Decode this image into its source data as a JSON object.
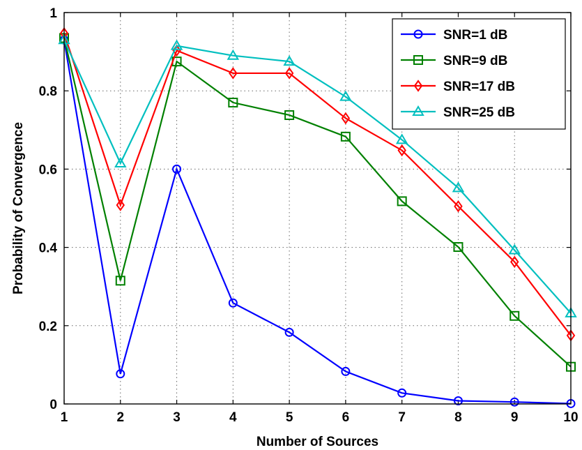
{
  "chart_data": {
    "type": "line",
    "title": "",
    "xlabel": "Number of Sources",
    "ylabel": "Probability of Convergence",
    "x": [
      1,
      2,
      3,
      4,
      5,
      6,
      7,
      8,
      9,
      10
    ],
    "xlim": [
      1,
      10
    ],
    "ylim": [
      0,
      1
    ],
    "xticks": [
      1,
      2,
      3,
      4,
      5,
      6,
      7,
      8,
      9,
      10
    ],
    "yticks": [
      0,
      0.2,
      0.4,
      0.6,
      0.8,
      1
    ],
    "ytick_labels": [
      "0",
      "0.2",
      "0.4",
      "0.6",
      "0.8",
      "1"
    ],
    "grid": true,
    "legend_position": "top-right",
    "series": [
      {
        "name": "SNR=1 dB",
        "color": "#0000ff",
        "marker": "circle",
        "values": [
          0.93,
          0.077,
          0.6,
          0.258,
          0.183,
          0.083,
          0.028,
          0.008,
          0.005,
          0.001
        ]
      },
      {
        "name": "SNR=9 dB",
        "color": "#008000",
        "marker": "square",
        "values": [
          0.935,
          0.315,
          0.875,
          0.77,
          0.738,
          0.683,
          0.518,
          0.401,
          0.225,
          0.095
        ]
      },
      {
        "name": "SNR=17 dB",
        "color": "#ff0000",
        "marker": "diamond",
        "values": [
          0.947,
          0.508,
          0.903,
          0.845,
          0.845,
          0.73,
          0.648,
          0.505,
          0.363,
          0.175
        ]
      },
      {
        "name": "SNR=25 dB",
        "color": "#00bfbf",
        "marker": "triangle",
        "values": [
          0.93,
          0.615,
          0.915,
          0.89,
          0.875,
          0.785,
          0.675,
          0.552,
          0.393,
          0.232
        ]
      }
    ]
  }
}
